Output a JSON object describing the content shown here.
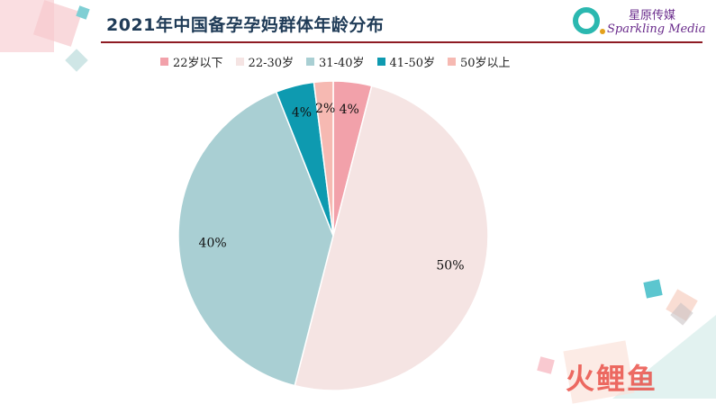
{
  "title": "2021年中国备孕孕妈群体年龄分布",
  "brand": {
    "cn": "星原传媒",
    "en": "Sparkling Media"
  },
  "watermark": "火鲤鱼",
  "colors": {
    "title": "#1f3b57",
    "rule": "#8e1b23",
    "brand": "#6a2c8c"
  },
  "chart_data": {
    "type": "pie",
    "title": "2021年中国备孕孕妈群体年龄分布",
    "legend_position": "top",
    "start_angle_deg": 0,
    "direction": "clockwise",
    "slices": [
      {
        "label": "22岁以下",
        "value": 4,
        "display": "4%",
        "color": "#f2a1aa"
      },
      {
        "label": "22-30岁",
        "value": 50,
        "display": "50%",
        "color": "#f5e4e3"
      },
      {
        "label": "31-40岁",
        "value": 40,
        "display": "40%",
        "color": "#a9cfd3"
      },
      {
        "label": "41-50岁",
        "value": 4,
        "display": "4%",
        "color": "#0e9ab0"
      },
      {
        "label": "50岁以上",
        "value": 2,
        "display": "2%",
        "color": "#f6b9b2"
      }
    ]
  }
}
